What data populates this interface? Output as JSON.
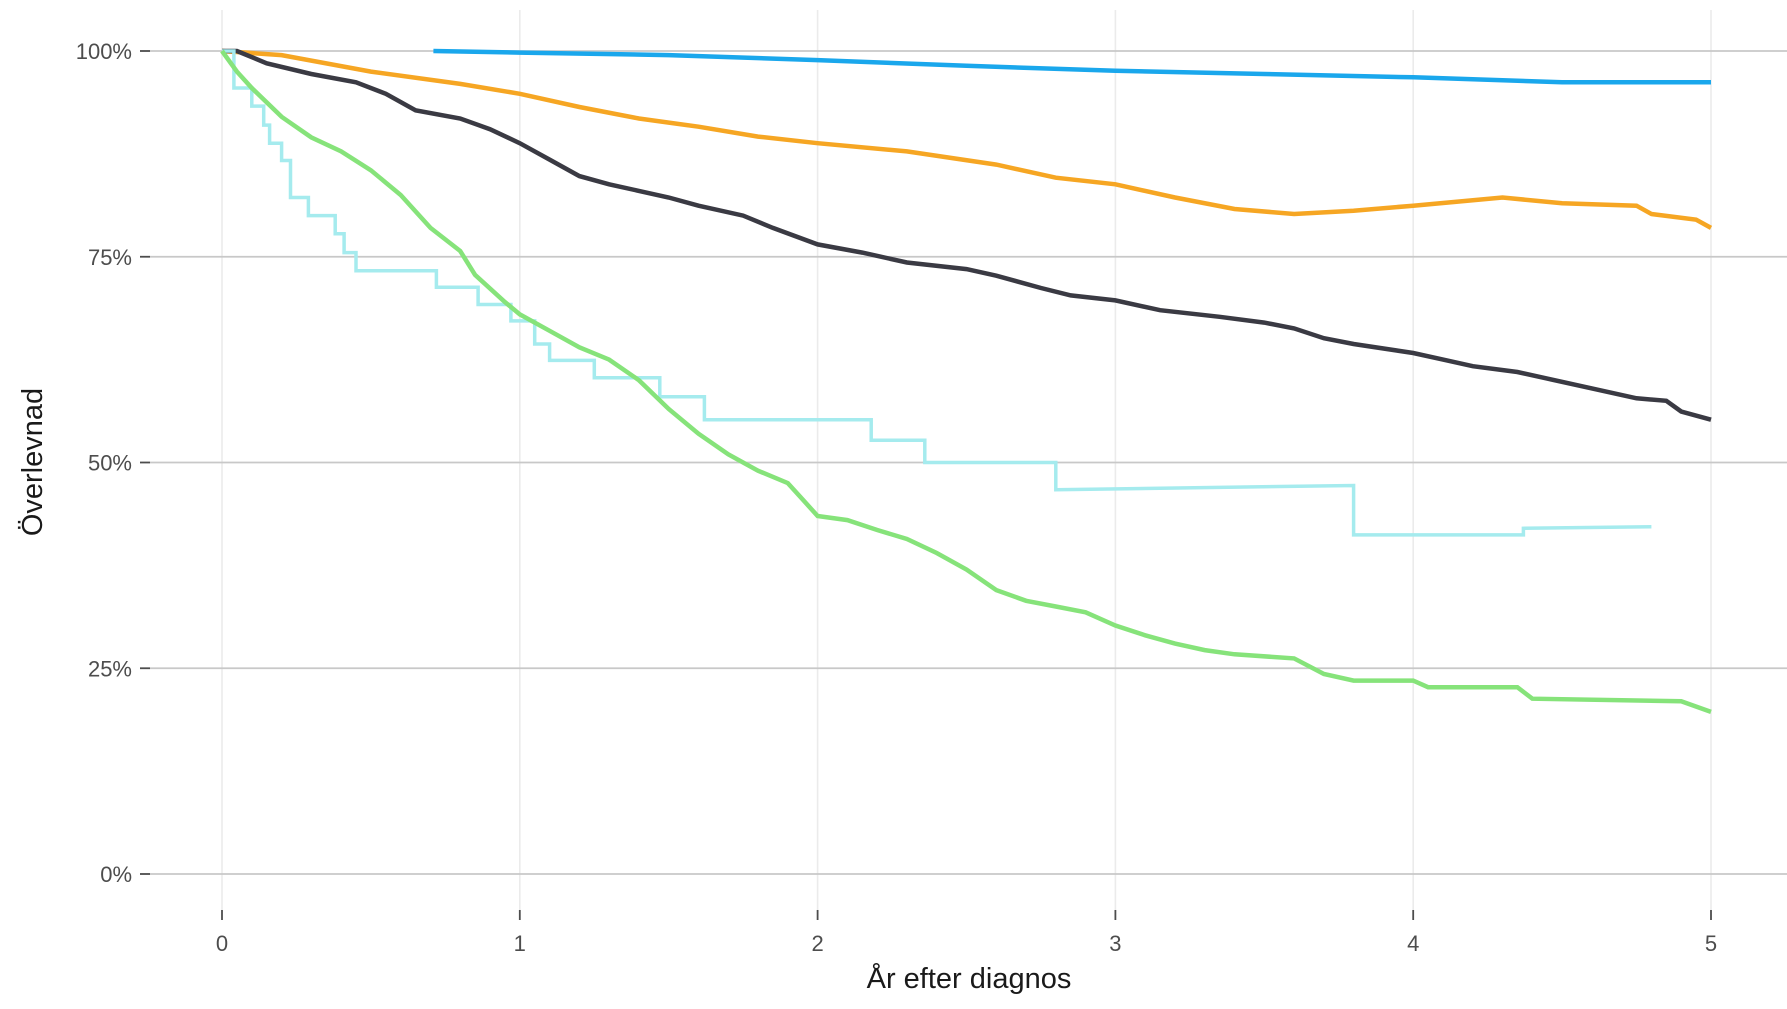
{
  "chart_data": {
    "type": "line",
    "xlabel": "År efter diagnos",
    "ylabel": "Överlevnad",
    "xlim": [
      -0.15,
      5.25
    ],
    "ylim": [
      -0.035,
      1.05
    ],
    "x_ticks": [
      0,
      1,
      2,
      3,
      4,
      5
    ],
    "x_tick_labels": [
      "0",
      "1",
      "2",
      "3",
      "4",
      "5"
    ],
    "y_ticks": [
      0,
      0.25,
      0.5,
      0.75,
      1
    ],
    "y_tick_labels": [
      "0%",
      "25%",
      "50%",
      "75%",
      "100%"
    ],
    "grid": true,
    "legend": "none",
    "series": [
      {
        "color": "#1aa7ec",
        "points": [
          [
            0.71,
            1.0
          ],
          [
            1.0,
            0.998
          ],
          [
            1.5,
            0.995
          ],
          [
            2.0,
            0.989
          ],
          [
            2.5,
            0.982
          ],
          [
            3.0,
            0.976
          ],
          [
            3.5,
            0.972
          ],
          [
            4.0,
            0.968
          ],
          [
            4.5,
            0.962
          ],
          [
            5.0,
            0.962
          ]
        ]
      },
      {
        "color": "#f6a623",
        "points": [
          [
            0.0,
            1.0
          ],
          [
            0.2,
            0.995
          ],
          [
            0.5,
            0.975
          ],
          [
            0.8,
            0.96
          ],
          [
            1.0,
            0.948
          ],
          [
            1.2,
            0.932
          ],
          [
            1.4,
            0.918
          ],
          [
            1.6,
            0.908
          ],
          [
            1.8,
            0.896
          ],
          [
            2.0,
            0.888
          ],
          [
            2.3,
            0.878
          ],
          [
            2.6,
            0.862
          ],
          [
            2.8,
            0.846
          ],
          [
            3.0,
            0.838
          ],
          [
            3.2,
            0.822
          ],
          [
            3.4,
            0.808
          ],
          [
            3.6,
            0.802
          ],
          [
            3.8,
            0.806
          ],
          [
            4.0,
            0.812
          ],
          [
            4.3,
            0.822
          ],
          [
            4.5,
            0.815
          ],
          [
            4.75,
            0.812
          ],
          [
            4.8,
            0.802
          ],
          [
            4.95,
            0.795
          ],
          [
            5.0,
            0.785
          ]
        ]
      },
      {
        "color": "#3a3a43",
        "points": [
          [
            0.0,
            1.0
          ],
          [
            0.05,
            1.0
          ],
          [
            0.15,
            0.985
          ],
          [
            0.3,
            0.972
          ],
          [
            0.45,
            0.962
          ],
          [
            0.55,
            0.948
          ],
          [
            0.65,
            0.928
          ],
          [
            0.8,
            0.918
          ],
          [
            0.9,
            0.905
          ],
          [
            1.0,
            0.888
          ],
          [
            1.1,
            0.868
          ],
          [
            1.2,
            0.848
          ],
          [
            1.3,
            0.838
          ],
          [
            1.4,
            0.83
          ],
          [
            1.5,
            0.822
          ],
          [
            1.6,
            0.812
          ],
          [
            1.75,
            0.8
          ],
          [
            1.85,
            0.785
          ],
          [
            2.0,
            0.765
          ],
          [
            2.15,
            0.755
          ],
          [
            2.3,
            0.743
          ],
          [
            2.5,
            0.735
          ],
          [
            2.6,
            0.727
          ],
          [
            2.75,
            0.712
          ],
          [
            2.85,
            0.703
          ],
          [
            3.0,
            0.697
          ],
          [
            3.15,
            0.685
          ],
          [
            3.35,
            0.677
          ],
          [
            3.5,
            0.67
          ],
          [
            3.6,
            0.663
          ],
          [
            3.7,
            0.651
          ],
          [
            3.8,
            0.644
          ],
          [
            4.0,
            0.633
          ],
          [
            4.1,
            0.625
          ],
          [
            4.2,
            0.617
          ],
          [
            4.35,
            0.61
          ],
          [
            4.45,
            0.602
          ],
          [
            4.6,
            0.59
          ],
          [
            4.75,
            0.578
          ],
          [
            4.85,
            0.575
          ],
          [
            4.9,
            0.562
          ],
          [
            5.0,
            0.552
          ]
        ]
      },
      {
        "color": "#a5ebee",
        "points": [
          [
            0.0,
            1.0
          ],
          [
            0.04,
            1.0
          ],
          [
            0.04,
            0.955
          ],
          [
            0.1,
            0.955
          ],
          [
            0.1,
            0.933
          ],
          [
            0.14,
            0.933
          ],
          [
            0.14,
            0.91
          ],
          [
            0.16,
            0.91
          ],
          [
            0.16,
            0.888
          ],
          [
            0.2,
            0.888
          ],
          [
            0.2,
            0.867
          ],
          [
            0.23,
            0.867
          ],
          [
            0.23,
            0.822
          ],
          [
            0.29,
            0.822
          ],
          [
            0.29,
            0.8
          ],
          [
            0.38,
            0.8
          ],
          [
            0.38,
            0.778
          ],
          [
            0.41,
            0.778
          ],
          [
            0.41,
            0.755
          ],
          [
            0.45,
            0.755
          ],
          [
            0.45,
            0.733
          ],
          [
            0.72,
            0.733
          ],
          [
            0.72,
            0.713
          ],
          [
            0.86,
            0.713
          ],
          [
            0.86,
            0.692
          ],
          [
            0.97,
            0.692
          ],
          [
            0.97,
            0.672
          ],
          [
            1.05,
            0.672
          ],
          [
            1.05,
            0.644
          ],
          [
            1.1,
            0.644
          ],
          [
            1.1,
            0.624
          ],
          [
            1.25,
            0.624
          ],
          [
            1.25,
            0.603
          ],
          [
            1.47,
            0.603
          ],
          [
            1.47,
            0.58
          ],
          [
            1.62,
            0.58
          ],
          [
            1.62,
            0.552
          ],
          [
            2.18,
            0.552
          ],
          [
            2.18,
            0.527
          ],
          [
            2.36,
            0.527
          ],
          [
            2.36,
            0.5
          ],
          [
            2.8,
            0.5
          ],
          [
            2.8,
            0.467
          ],
          [
            3.8,
            0.472
          ],
          [
            3.8,
            0.412
          ],
          [
            4.37,
            0.412
          ],
          [
            4.37,
            0.42
          ],
          [
            4.8,
            0.422
          ]
        ]
      },
      {
        "color": "#86e37a",
        "points": [
          [
            0.0,
            1.0
          ],
          [
            0.05,
            0.975
          ],
          [
            0.1,
            0.955
          ],
          [
            0.2,
            0.92
          ],
          [
            0.3,
            0.895
          ],
          [
            0.4,
            0.878
          ],
          [
            0.5,
            0.855
          ],
          [
            0.6,
            0.825
          ],
          [
            0.7,
            0.785
          ],
          [
            0.8,
            0.757
          ],
          [
            0.85,
            0.728
          ],
          [
            0.95,
            0.695
          ],
          [
            1.0,
            0.68
          ],
          [
            1.1,
            0.66
          ],
          [
            1.2,
            0.64
          ],
          [
            1.3,
            0.625
          ],
          [
            1.4,
            0.6
          ],
          [
            1.5,
            0.565
          ],
          [
            1.6,
            0.535
          ],
          [
            1.7,
            0.51
          ],
          [
            1.8,
            0.49
          ],
          [
            1.9,
            0.475
          ],
          [
            1.95,
            0.455
          ],
          [
            2.0,
            0.435
          ],
          [
            2.1,
            0.43
          ],
          [
            2.2,
            0.418
          ],
          [
            2.3,
            0.407
          ],
          [
            2.4,
            0.39
          ],
          [
            2.5,
            0.37
          ],
          [
            2.6,
            0.345
          ],
          [
            2.7,
            0.332
          ],
          [
            2.8,
            0.325
          ],
          [
            2.9,
            0.318
          ],
          [
            3.0,
            0.302
          ],
          [
            3.1,
            0.29
          ],
          [
            3.2,
            0.28
          ],
          [
            3.3,
            0.272
          ],
          [
            3.4,
            0.267
          ],
          [
            3.6,
            0.262
          ],
          [
            3.7,
            0.243
          ],
          [
            3.8,
            0.235
          ],
          [
            4.0,
            0.235
          ],
          [
            4.05,
            0.227
          ],
          [
            4.35,
            0.227
          ],
          [
            4.4,
            0.213
          ],
          [
            4.9,
            0.21
          ],
          [
            5.0,
            0.197
          ]
        ]
      }
    ]
  }
}
